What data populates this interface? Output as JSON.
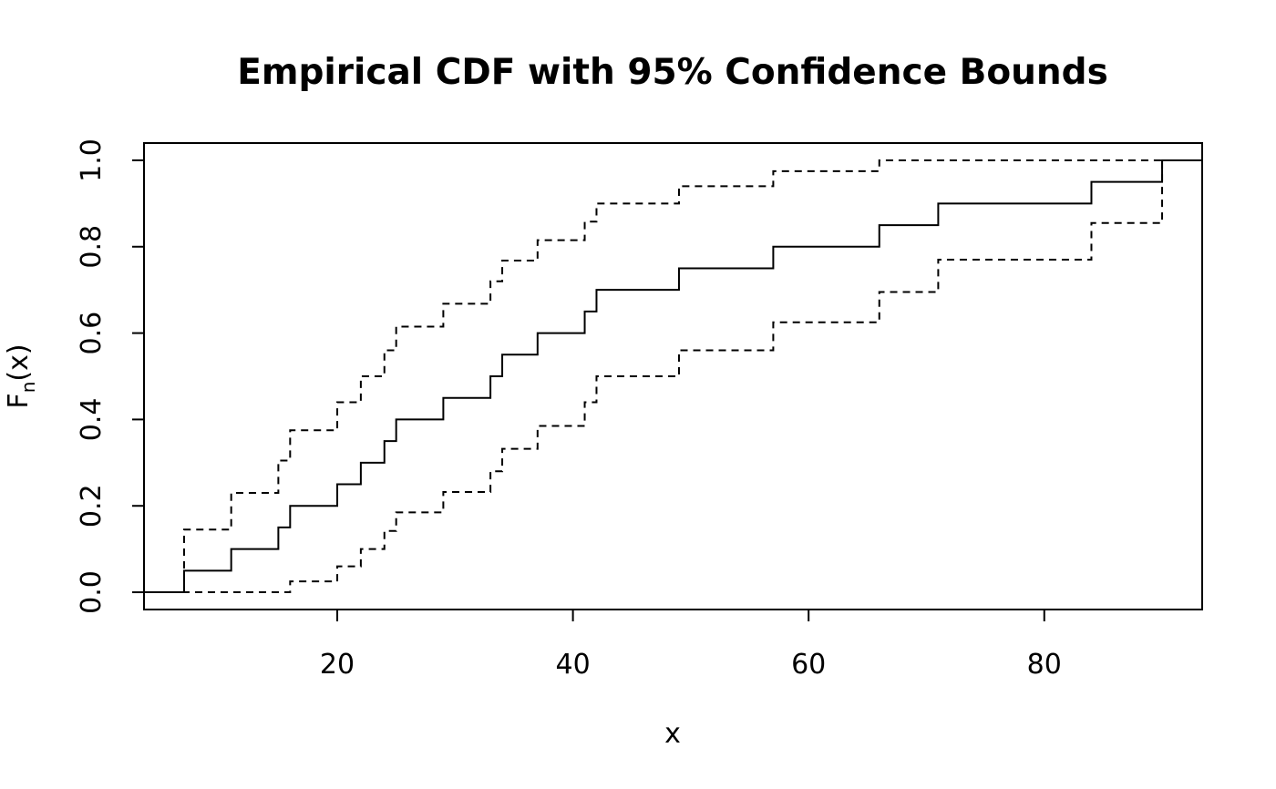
{
  "chart_data": {
    "type": "line",
    "title": "Empirical CDF with 95% Confidence Bounds",
    "xlabel": "x",
    "ylabel_main": "F",
    "ylabel_sub": "n",
    "ylabel_tail": "(x)",
    "xlim": [
      3.6,
      93.4
    ],
    "ylim": [
      -0.04,
      1.04
    ],
    "x_ticks": [
      20,
      40,
      60,
      80
    ],
    "x_tick_labels": [
      "20",
      "40",
      "60",
      "80"
    ],
    "y_ticks": [
      0.0,
      0.2,
      0.4,
      0.6,
      0.8,
      1.0
    ],
    "y_tick_labels": [
      "0.0",
      "0.2",
      "0.4",
      "0.6",
      "0.8",
      "1.0"
    ],
    "grid": false,
    "series": [
      {
        "style": "solid",
        "x": [
          3.6,
          7,
          11,
          15,
          16,
          20,
          22,
          24,
          25,
          29,
          33,
          34,
          37,
          41,
          42,
          49,
          57,
          66,
          71,
          84,
          90,
          93.4
        ],
        "y": [
          0.0,
          0.05,
          0.1,
          0.15,
          0.2,
          0.25,
          0.3,
          0.35,
          0.4,
          0.45,
          0.5,
          0.55,
          0.6,
          0.65,
          0.7,
          0.75,
          0.8,
          0.85,
          0.9,
          0.95,
          1.0,
          1.0
        ]
      },
      {
        "style": "dashed",
        "x": [
          3.6,
          7,
          11,
          15,
          16,
          20,
          22,
          24,
          25,
          29,
          33,
          34,
          37,
          41,
          42,
          49,
          57,
          66,
          71,
          84,
          90,
          93.4
        ],
        "y": [
          0.0,
          0.145,
          0.23,
          0.305,
          0.375,
          0.44,
          0.5,
          0.56,
          0.615,
          0.668,
          0.72,
          0.768,
          0.815,
          0.858,
          0.9,
          0.94,
          0.975,
          1.0,
          1.0,
          1.0,
          1.0,
          1.0
        ]
      },
      {
        "style": "dashed",
        "x": [
          3.6,
          7,
          11,
          15,
          16,
          20,
          22,
          24,
          25,
          29,
          33,
          34,
          37,
          41,
          42,
          49,
          57,
          66,
          71,
          84,
          90,
          93.4
        ],
        "y": [
          0.0,
          0.0,
          0.0,
          0.0,
          0.025,
          0.06,
          0.1,
          0.142,
          0.185,
          0.232,
          0.28,
          0.332,
          0.385,
          0.44,
          0.5,
          0.56,
          0.625,
          0.695,
          0.77,
          0.855,
          1.0,
          1.0
        ]
      }
    ]
  }
}
